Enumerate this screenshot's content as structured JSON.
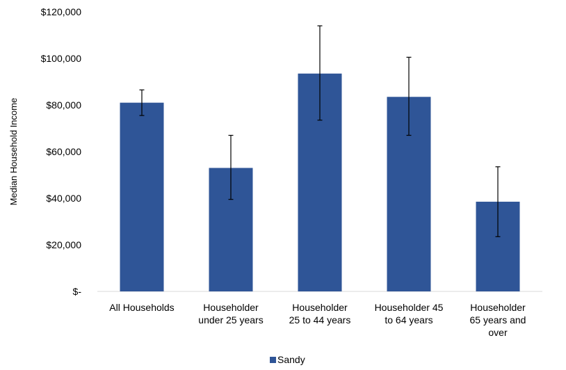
{
  "chart_data": {
    "type": "bar",
    "categories": [
      [
        "All Households"
      ],
      [
        "Householder",
        "under 25 years"
      ],
      [
        "Householder",
        "25 to 44 years"
      ],
      [
        "Householder 45",
        "to 64 years"
      ],
      [
        "Householder",
        "65 years and",
        "over"
      ]
    ],
    "series": [
      {
        "name": "Sandy",
        "color": "#2F5597",
        "values": [
          81000,
          53000,
          93500,
          83500,
          38500
        ],
        "error_low": [
          75500,
          39500,
          73500,
          67000,
          23500
        ],
        "error_high": [
          86500,
          67000,
          114000,
          100500,
          53500
        ]
      }
    ],
    "ylabel": "Median Household Income",
    "ylim": [
      0,
      120000
    ],
    "yticks": [
      0,
      20000,
      40000,
      60000,
      80000,
      100000,
      120000
    ],
    "ytick_labels": [
      "$-",
      "$20,000",
      "$40,000",
      "$60,000",
      "$80,000",
      "$100,000",
      "$120,000"
    ],
    "legend": {
      "position": "bottom",
      "labels": [
        "Sandy"
      ]
    },
    "grid": false
  }
}
